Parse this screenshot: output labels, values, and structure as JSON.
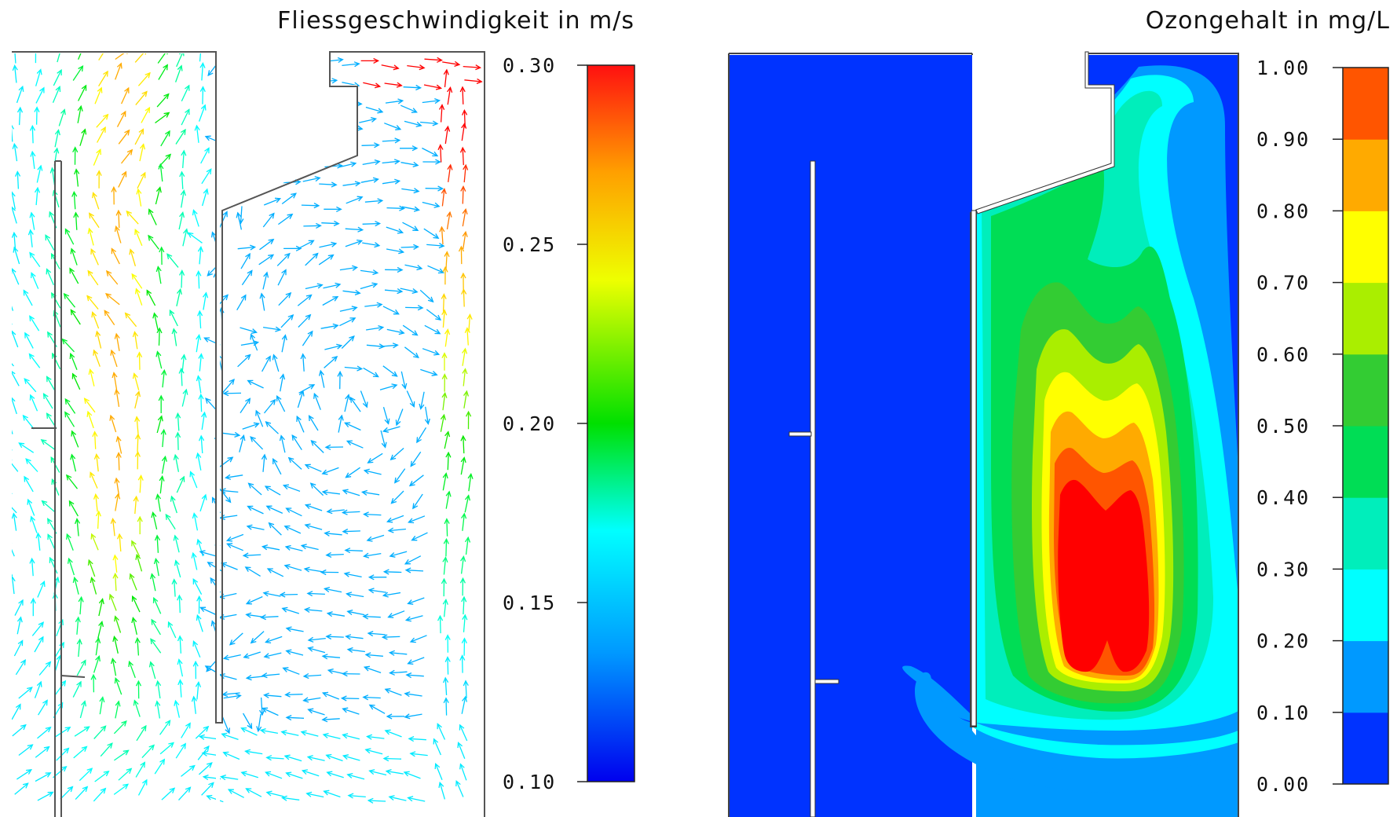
{
  "left_panel": {
    "title": "Fliessgeschwindigkeit  in  m/s",
    "colorbar_ticks": [
      "0.30",
      "0.25",
      "0.20",
      "0.15",
      "0.10"
    ],
    "colorbar_range": [
      0.1,
      0.3
    ],
    "colormap": [
      "#0000ff",
      "#00aaff",
      "#00ffff",
      "#00ff66",
      "#00e600",
      "#ffff00",
      "#ffa500",
      "#ff0000"
    ]
  },
  "right_panel": {
    "title": "Ozongehalt  in  mg/L",
    "colorbar_ticks": [
      "1.00",
      "0.90",
      "0.80",
      "0.70",
      "0.60",
      "0.50",
      "0.40",
      "0.30",
      "0.20",
      "0.10",
      "0.00"
    ],
    "colorbar_range": [
      0.0,
      1.0
    ],
    "level_colors": [
      "#0033ff",
      "#0099ff",
      "#00ffff",
      "#00eebb",
      "#00dd55",
      "#33cc33",
      "#aaee00",
      "#ffff00",
      "#ffaa00",
      "#ff5500"
    ]
  }
}
